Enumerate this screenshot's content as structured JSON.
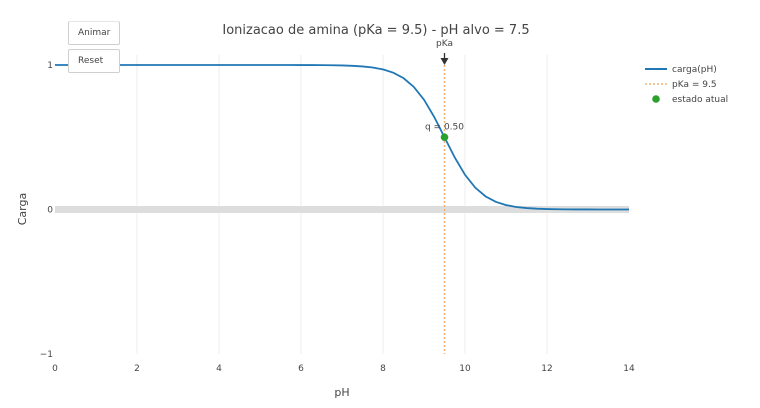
{
  "controls": {
    "animate_label": "Animar",
    "reset_label": "Reset"
  },
  "chart_data": {
    "type": "line",
    "title": "Ionizacao de amina (pKa = 9.5) - pH alvo = 7.5",
    "xlabel": "pH",
    "ylabel": "Carga",
    "xlim": [
      0,
      14
    ],
    "ylim": [
      -1,
      1
    ],
    "x_ticks": [
      0,
      2,
      4,
      6,
      8,
      10,
      12,
      14
    ],
    "y_ticks": [
      -1,
      0,
      1
    ],
    "x_tick_labels": [
      "0",
      "2",
      "4",
      "6",
      "8",
      "10",
      "12",
      "14"
    ],
    "y_tick_labels": [
      "−1",
      "0",
      "1"
    ],
    "grid": true,
    "pKa": 9.5,
    "series": [
      {
        "name": "carga(pH)",
        "kind": "line",
        "color": "#1f77b4",
        "x_start": 0,
        "x_end": 14,
        "x_step": 0.25
      },
      {
        "name": "pKa = 9.5",
        "kind": "vline",
        "color": "#f0b36f",
        "x": 9.5
      },
      {
        "name": "estado atual",
        "kind": "marker",
        "color": "#2ca02c",
        "x": 9.5,
        "y": 0.5
      }
    ],
    "annotations": [
      {
        "text": "pKa",
        "x": 9.5,
        "y": 1,
        "arrow": true
      },
      {
        "text": "q = 0.50",
        "x": 9.5,
        "y": 0.5
      }
    ],
    "legend": {
      "position": "top-right",
      "entries": [
        "carga(pH)",
        "pKa = 9.5",
        "estado atual"
      ]
    }
  }
}
